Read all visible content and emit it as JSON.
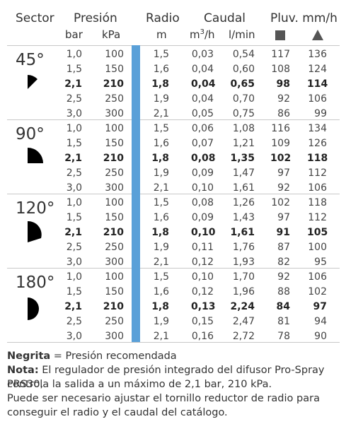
{
  "header": {
    "sector": "Sector",
    "presion": "Presión",
    "radio": "Radio",
    "caudal": "Caudal",
    "pluv": "Pluv. mm/h",
    "bar": "bar",
    "kpa": "kPa",
    "m": "m",
    "m3h_base": "m",
    "m3h_exp": "3",
    "m3h_tail": "/h",
    "lmin": "l/min",
    "square_icon": "square-icon",
    "triangle_icon": "triangle-icon"
  },
  "sectors": [
    {
      "label": "45°",
      "icon": "sector-45-icon",
      "rows": [
        {
          "bar": "1,0",
          "kpa": "100",
          "radio": "1,5",
          "m3h": "0,03",
          "lmin": "0,54",
          "sq": "117",
          "tri": "136",
          "bold": false
        },
        {
          "bar": "1,5",
          "kpa": "150",
          "radio": "1,6",
          "m3h": "0,04",
          "lmin": "0,60",
          "sq": "108",
          "tri": "124",
          "bold": false
        },
        {
          "bar": "2,1",
          "kpa": "210",
          "radio": "1,8",
          "m3h": "0,04",
          "lmin": "0,65",
          "sq": "98",
          "tri": "114",
          "bold": true
        },
        {
          "bar": "2,5",
          "kpa": "250",
          "radio": "1,9",
          "m3h": "0,04",
          "lmin": "0,70",
          "sq": "92",
          "tri": "106",
          "bold": false
        },
        {
          "bar": "3,0",
          "kpa": "300",
          "radio": "2,1",
          "m3h": "0,05",
          "lmin": "0,75",
          "sq": "86",
          "tri": "99",
          "bold": false
        }
      ]
    },
    {
      "label": "90°",
      "icon": "sector-90-icon",
      "rows": [
        {
          "bar": "1,0",
          "kpa": "100",
          "radio": "1,5",
          "m3h": "0,06",
          "lmin": "1,08",
          "sq": "116",
          "tri": "134",
          "bold": false
        },
        {
          "bar": "1,5",
          "kpa": "150",
          "radio": "1,6",
          "m3h": "0,07",
          "lmin": "1,21",
          "sq": "109",
          "tri": "126",
          "bold": false
        },
        {
          "bar": "2,1",
          "kpa": "210",
          "radio": "1,8",
          "m3h": "0,08",
          "lmin": "1,35",
          "sq": "102",
          "tri": "118",
          "bold": true
        },
        {
          "bar": "2,5",
          "kpa": "250",
          "radio": "1,9",
          "m3h": "0,09",
          "lmin": "1,47",
          "sq": "97",
          "tri": "112",
          "bold": false
        },
        {
          "bar": "3,0",
          "kpa": "300",
          "radio": "2,1",
          "m3h": "0,10",
          "lmin": "1,61",
          "sq": "92",
          "tri": "106",
          "bold": false
        }
      ]
    },
    {
      "label": "120°",
      "icon": "sector-120-icon",
      "rows": [
        {
          "bar": "1,0",
          "kpa": "100",
          "radio": "1,5",
          "m3h": "0,08",
          "lmin": "1,26",
          "sq": "102",
          "tri": "118",
          "bold": false
        },
        {
          "bar": "1,5",
          "kpa": "150",
          "radio": "1,6",
          "m3h": "0,09",
          "lmin": "1,43",
          "sq": "97",
          "tri": "112",
          "bold": false
        },
        {
          "bar": "2,1",
          "kpa": "210",
          "radio": "1,8",
          "m3h": "0,10",
          "lmin": "1,61",
          "sq": "91",
          "tri": "105",
          "bold": true
        },
        {
          "bar": "2,5",
          "kpa": "250",
          "radio": "1,9",
          "m3h": "0,11",
          "lmin": "1,76",
          "sq": "87",
          "tri": "100",
          "bold": false
        },
        {
          "bar": "3,0",
          "kpa": "300",
          "radio": "2,1",
          "m3h": "0,12",
          "lmin": "1,93",
          "sq": "82",
          "tri": "95",
          "bold": false
        }
      ]
    },
    {
      "label": "180°",
      "icon": "sector-180-icon",
      "rows": [
        {
          "bar": "1,0",
          "kpa": "100",
          "radio": "1,5",
          "m3h": "0,10",
          "lmin": "1,70",
          "sq": "92",
          "tri": "106",
          "bold": false
        },
        {
          "bar": "1,5",
          "kpa": "150",
          "radio": "1,6",
          "m3h": "0,12",
          "lmin": "1,96",
          "sq": "88",
          "tri": "102",
          "bold": false
        },
        {
          "bar": "2,1",
          "kpa": "210",
          "radio": "1,8",
          "m3h": "0,13",
          "lmin": "2,24",
          "sq": "84",
          "tri": "97",
          "bold": true
        },
        {
          "bar": "2,5",
          "kpa": "250",
          "radio": "1,9",
          "m3h": "0,15",
          "lmin": "2,47",
          "sq": "81",
          "tri": "94",
          "bold": false
        },
        {
          "bar": "3,0",
          "kpa": "300",
          "radio": "2,1",
          "m3h": "0,16",
          "lmin": "2,72",
          "sq": "78",
          "tri": "90",
          "bold": false
        }
      ]
    }
  ],
  "notes": {
    "negrita_label": "Negrita",
    "negrita_text": " = Presión recomendada",
    "nota_label": "Nota:",
    "nota_text_1": " El regulador de presión integrado del difusor Pro-Spray PRS30,",
    "nota_text_2": "controla la salida a un máximo de 2,1 bar, 210 kPa.",
    "extra_1": "Puede ser necesario ajustar el tornillo reductor de radio para",
    "extra_2": "conseguir el radio y el caudal del catálogo."
  },
  "colors": {
    "accent_bar": "#5aa0d8",
    "separator": "#c8c8c8",
    "icon_fill": "#000000"
  }
}
